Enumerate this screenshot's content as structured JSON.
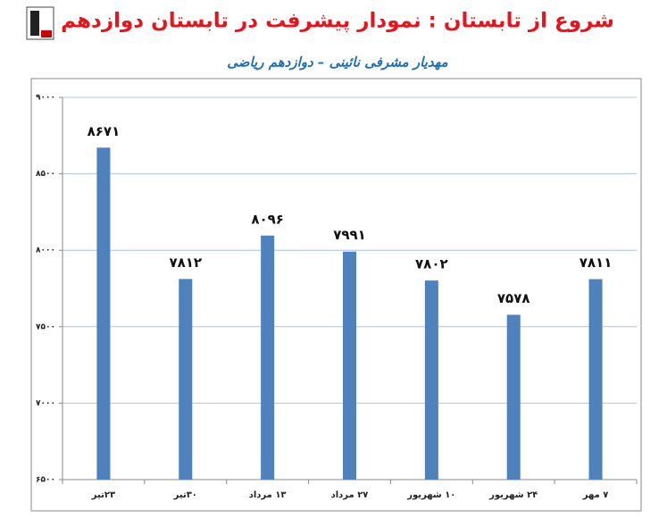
{
  "chart_data": {
    "type": "bar",
    "title": "شروع از تابستان : نمودار پیشرفت در تابستان دوازدهم",
    "subtitle": "مهدیار مشرفی نائینی – دوازدهم ریاضی",
    "categories": [
      "۲۳تیر",
      "۳۰تیر",
      "۱۳ مرداد",
      "۲۷ مرداد",
      "۱۰ شهریور",
      "۲۴ شهریور",
      "۷ مهر"
    ],
    "values": [
      8671,
      7812,
      8096,
      7991,
      7802,
      7578,
      7811
    ],
    "value_labels": [
      "۸۶۷۱",
      "۷۸۱۲",
      "۸۰۹۶",
      "۷۹۹۱",
      "۷۸۰۲",
      "۷۵۷۸",
      "۷۸۱۱"
    ],
    "color": "#4f81bd",
    "ylim": [
      6500,
      9000
    ],
    "yticks": [
      {
        "value": 6500,
        "label": "۶۵۰۰"
      },
      {
        "value": 7000,
        "label": "۷۰۰۰"
      },
      {
        "value": 7500,
        "label": "۷۵۰۰"
      },
      {
        "value": 8000,
        "label": "۸۰۰۰"
      },
      {
        "value": 8500,
        "label": "۸۵۰۰"
      },
      {
        "value": 9000,
        "label": "۹۰۰۰"
      }
    ],
    "grid": true
  }
}
